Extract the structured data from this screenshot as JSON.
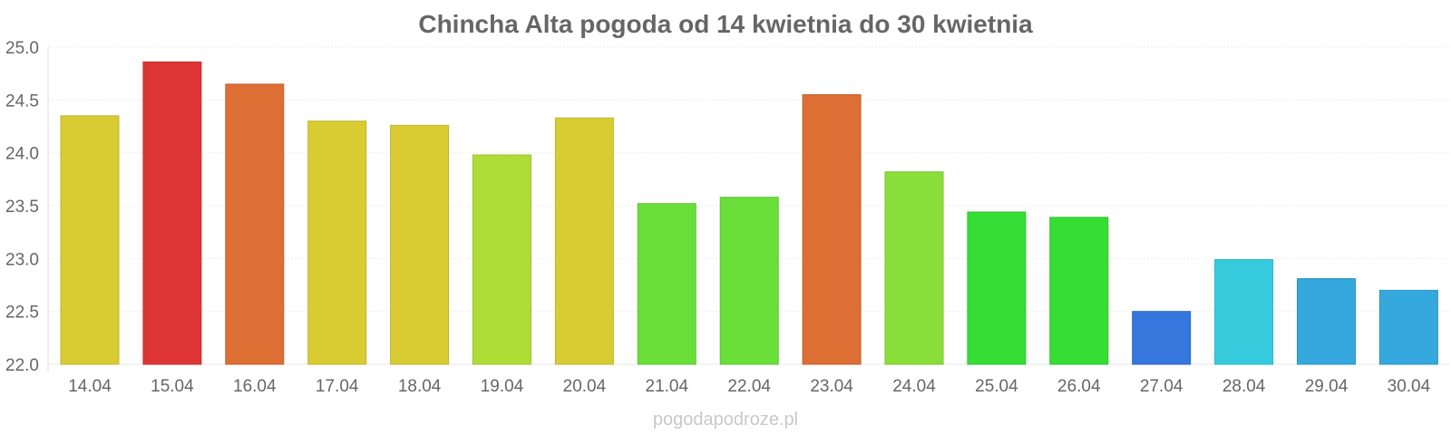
{
  "chart_data": {
    "type": "bar",
    "title": "Chincha Alta pogoda od 14 kwietnia do 30 kwietnia",
    "xlabel": "",
    "ylabel": "",
    "categories": [
      "14.04",
      "15.04",
      "16.04",
      "17.04",
      "18.04",
      "19.04",
      "20.04",
      "21.04",
      "22.04",
      "23.04",
      "24.04",
      "25.04",
      "26.04",
      "27.04",
      "28.04",
      "29.04",
      "30.04"
    ],
    "values": [
      24.35,
      24.86,
      24.65,
      24.3,
      24.26,
      23.98,
      24.33,
      23.52,
      23.58,
      24.55,
      23.82,
      23.44,
      23.39,
      22.5,
      22.99,
      22.81,
      22.7
    ],
    "colors": [
      "#d9cc33",
      "#dd3535",
      "#dd6f35",
      "#d9cc33",
      "#d9cc33",
      "#aedd35",
      "#d9cc33",
      "#6adf3a",
      "#6adf3a",
      "#dd6f35",
      "#8ade3a",
      "#35dd35",
      "#35dd35",
      "#3577dd",
      "#35cbdd",
      "#35a8dd",
      "#35a8dd"
    ],
    "ylim": [
      22.0,
      25.0
    ],
    "yticks": [
      "22.0",
      "22.5",
      "23.0",
      "23.5",
      "24.0",
      "24.5",
      "25.0"
    ],
    "grid": true,
    "legend": "none"
  },
  "footer": {
    "watermark": "pogodapodroze.pl"
  }
}
